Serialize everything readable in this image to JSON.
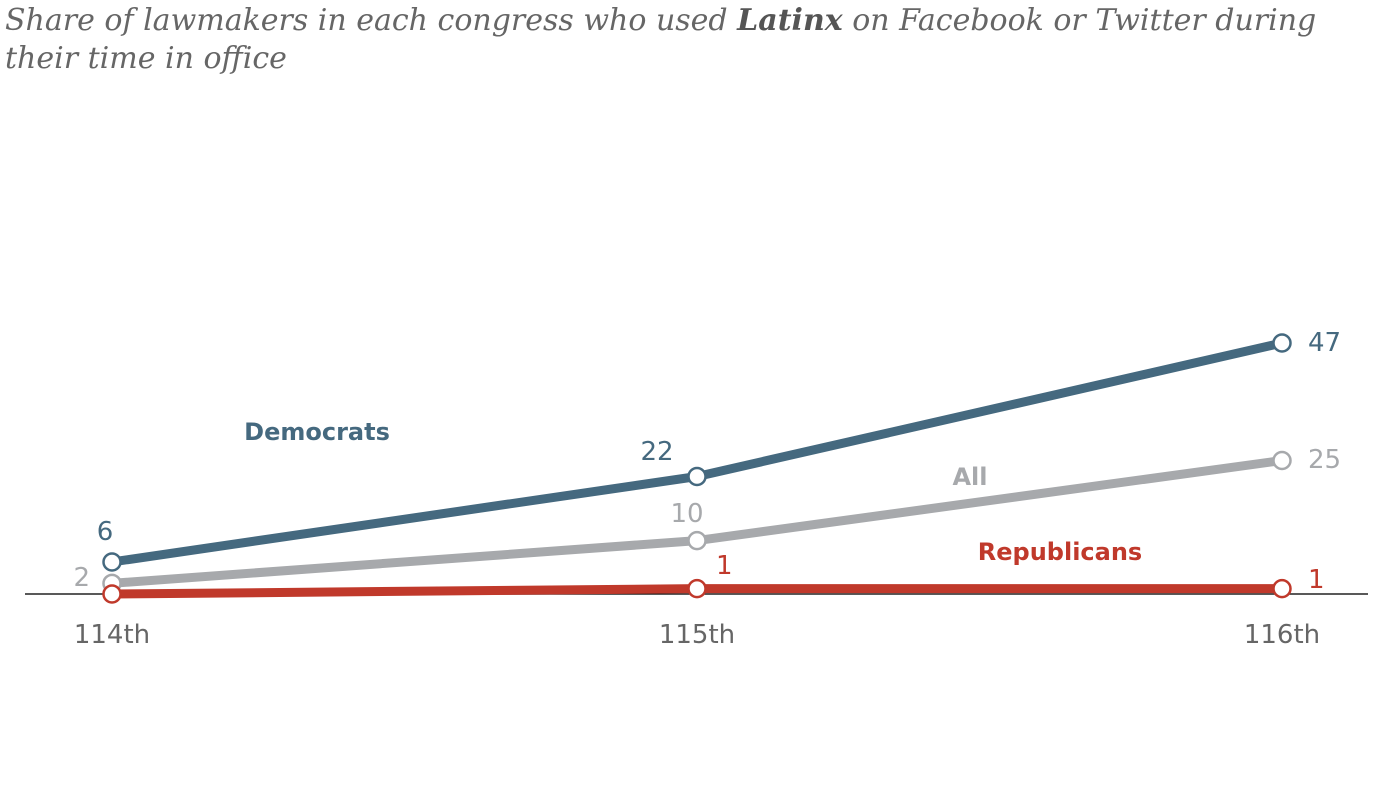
{
  "title": {
    "prefix": "Share of lawmakers in each congress who used ",
    "emphasis": "Latinx",
    "suffix": " on Facebook or Twitter during their time in office"
  },
  "chart_data": {
    "type": "line",
    "categories": [
      "114th",
      "115th",
      "116th"
    ],
    "ylim": [
      0,
      47
    ],
    "grid": false,
    "legend": "inline",
    "series": [
      {
        "key": "all",
        "name": "All",
        "values": [
          2,
          10,
          25
        ],
        "color": "#a7a9ac"
      },
      {
        "key": "rep",
        "name": "Republicans",
        "values": [
          0,
          1,
          1
        ],
        "value_labels": [
          "",
          "1",
          "1"
        ],
        "color": "#c0392b"
      },
      {
        "key": "dem",
        "name": "Democrats",
        "values": [
          6,
          22,
          47
        ],
        "color": "#45697f"
      }
    ]
  }
}
